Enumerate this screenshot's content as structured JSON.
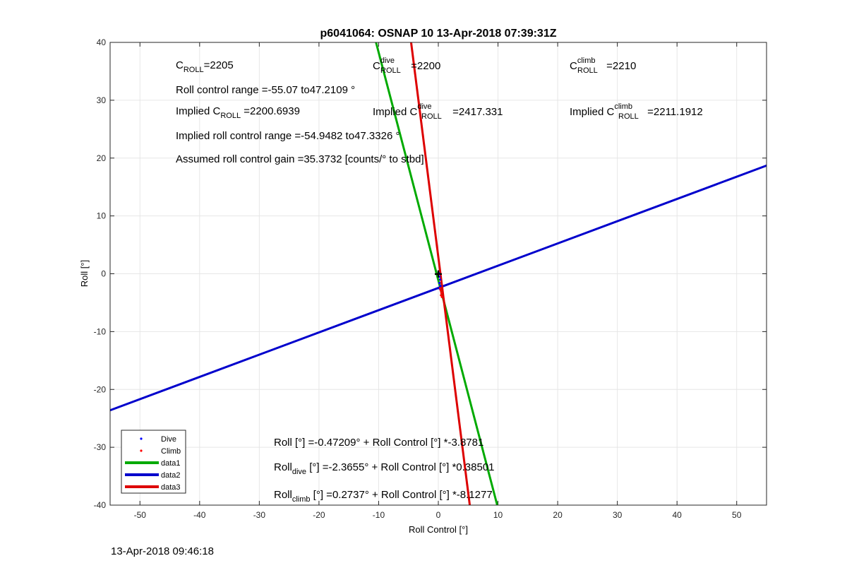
{
  "chart_data": {
    "type": "scatter",
    "title": "p6041064: OSNAP 10 13-Apr-2018 07:39:31Z",
    "xlabel": "Roll Control [°]",
    "ylabel": "Roll [°]",
    "xlim": [
      -55,
      55
    ],
    "ylim": [
      -40,
      40
    ],
    "x_ticks": [
      -50,
      -40,
      -30,
      -20,
      -10,
      0,
      10,
      20,
      30,
      40,
      50
    ],
    "y_ticks": [
      -40,
      -30,
      -20,
      -10,
      0,
      10,
      20,
      30,
      40
    ],
    "grid": true,
    "legend_position": "bottom-left",
    "series": [
      {
        "name": "Dive",
        "kind": "points",
        "color": "#0000ff",
        "x": [
          0.1,
          0.2,
          0.3,
          0.2,
          0.35,
          0.25
        ],
        "y": [
          0.1,
          -0.5,
          -1.0,
          -1.6,
          -2.1,
          -2.6
        ]
      },
      {
        "name": "Climb",
        "kind": "points",
        "color": "#ff0000",
        "x": [
          0.3,
          0.4,
          0.5,
          0.45,
          0.6
        ],
        "y": [
          -2.5,
          -2.9,
          -3.3,
          -3.7,
          -4.0
        ]
      },
      {
        "name": "data1",
        "kind": "line",
        "color": "#00aa00",
        "x": [
          -10.44,
          9.87
        ],
        "y": [
          40,
          -40
        ]
      },
      {
        "name": "data2",
        "kind": "line",
        "color": "#0000cc",
        "x": [
          -55,
          55
        ],
        "y": [
          -23.6,
          18.7
        ]
      },
      {
        "name": "data3",
        "kind": "line",
        "color": "#dd0000",
        "x": [
          -4.56,
          5.27
        ],
        "y": [
          40,
          -40
        ]
      }
    ],
    "markers": [
      {
        "symbol": "+",
        "x": 0,
        "y": 0
      }
    ],
    "annotations_top": {
      "c_roll": {
        "sym": "C",
        "sub": "ROLL",
        "val": "=2205"
      },
      "roll_range": "Roll control range =-55.07 to47.2109 °",
      "implied_c_roll": {
        "pre": "Implied C",
        "sub": "ROLL",
        "val": " =2200.6939"
      },
      "implied_range": "Implied roll control range =-54.9482 to47.3326 °",
      "gain": "Assumed roll control gain =35.3732 [counts/° to stbd]",
      "c_dive": {
        "sym": "C",
        "sup": "dive",
        "sub": "ROLL",
        "val": " =2200"
      },
      "implied_c_dive": {
        "pre": "Implied C",
        "sup": "dive",
        "sub": "ROLL",
        "val": " =2417.331"
      },
      "c_climb": {
        "sym": "C",
        "sup": "climb",
        "sub": "ROLL",
        "val": " =2210"
      },
      "implied_c_climb": {
        "pre": "Implied C",
        "sup": "climb",
        "sub": "ROLL",
        "val": " =2211.1912"
      }
    },
    "annotations_bottom": {
      "eq_all": "Roll [°] =-0.47209° + Roll Control [°] *-3.8781",
      "eq_dive": {
        "pre": "Roll",
        "sub": "dive",
        "post": " [°] =-2.3655° + Roll Control [°] *0.38501"
      },
      "eq_climb": {
        "pre": "Roll",
        "sub": "climb",
        "post": " [°] =0.2737° + Roll Control [°] *-8.1277"
      }
    }
  },
  "footer": {
    "timestamp": "13-Apr-2018 09:46:18"
  }
}
